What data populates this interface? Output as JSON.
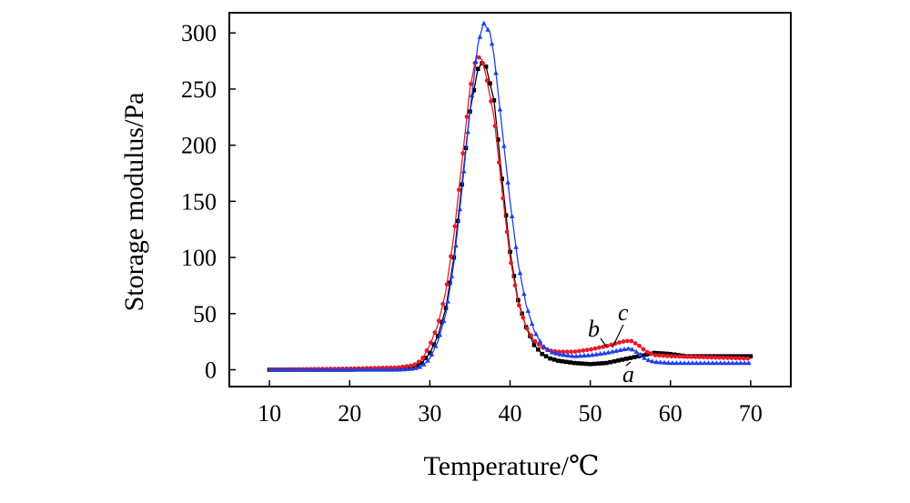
{
  "chart_data": {
    "type": "line",
    "title": "",
    "xlabel": "Temperature/℃",
    "ylabel": "Storage modulus/Pa",
    "xlim": [
      5,
      75
    ],
    "ylim": [
      -15,
      318
    ],
    "xticks": [
      10,
      20,
      30,
      40,
      50,
      60,
      70
    ],
    "yticks": [
      0,
      50,
      100,
      150,
      200,
      250,
      300
    ],
    "xtick_labels": [
      "10",
      "20",
      "30",
      "40",
      "50",
      "60",
      "70"
    ],
    "ytick_labels": [
      "0",
      "50",
      "100",
      "150",
      "200",
      "250",
      "300"
    ],
    "grid": false,
    "legend": "none",
    "annotations": [
      "a",
      "b",
      "c"
    ],
    "series": [
      {
        "name": "a",
        "color": "#000000",
        "marker": "square",
        "points": [
          [
            10,
            0
          ],
          [
            20,
            0
          ],
          [
            26,
            1
          ],
          [
            28,
            2
          ],
          [
            29,
            6
          ],
          [
            30,
            15
          ],
          [
            31,
            30
          ],
          [
            32,
            55
          ],
          [
            33,
            100
          ],
          [
            34,
            165
          ],
          [
            35,
            230
          ],
          [
            36,
            268
          ],
          [
            36.5,
            273
          ],
          [
            37,
            270
          ],
          [
            38,
            240
          ],
          [
            39,
            170
          ],
          [
            40,
            105
          ],
          [
            41,
            62
          ],
          [
            42,
            38
          ],
          [
            43,
            22
          ],
          [
            44,
            14
          ],
          [
            45,
            10
          ],
          [
            46,
            8
          ],
          [
            48,
            6
          ],
          [
            50,
            5
          ],
          [
            52,
            6
          ],
          [
            54,
            9
          ],
          [
            56,
            12
          ],
          [
            58,
            15
          ],
          [
            60,
            14
          ],
          [
            62,
            12
          ],
          [
            65,
            12
          ],
          [
            70,
            12
          ]
        ]
      },
      {
        "name": "b",
        "color": "#e8192c",
        "marker": "circle",
        "points": [
          [
            10,
            0
          ],
          [
            20,
            1
          ],
          [
            26,
            2
          ],
          [
            28,
            4
          ],
          [
            29,
            9
          ],
          [
            30,
            22
          ],
          [
            31,
            40
          ],
          [
            32,
            70
          ],
          [
            33,
            120
          ],
          [
            34,
            185
          ],
          [
            35,
            250
          ],
          [
            35.8,
            280
          ],
          [
            36.5,
            276
          ],
          [
            37,
            262
          ],
          [
            38,
            225
          ],
          [
            39,
            160
          ],
          [
            40,
            100
          ],
          [
            41,
            60
          ],
          [
            42,
            38
          ],
          [
            43,
            26
          ],
          [
            44,
            20
          ],
          [
            45,
            17
          ],
          [
            46,
            16
          ],
          [
            48,
            16
          ],
          [
            50,
            18
          ],
          [
            52,
            21
          ],
          [
            53,
            23
          ],
          [
            54,
            25
          ],
          [
            55,
            26
          ],
          [
            56,
            22
          ],
          [
            57,
            16
          ],
          [
            58,
            13
          ],
          [
            60,
            12
          ],
          [
            65,
            11
          ],
          [
            70,
            10
          ]
        ]
      },
      {
        "name": "c",
        "color": "#1f3fe8",
        "marker": "triangle",
        "points": [
          [
            10,
            0
          ],
          [
            20,
            0
          ],
          [
            26,
            0
          ],
          [
            28,
            1
          ],
          [
            29,
            3
          ],
          [
            30,
            10
          ],
          [
            31,
            25
          ],
          [
            32,
            50
          ],
          [
            33,
            95
          ],
          [
            34,
            160
          ],
          [
            35,
            230
          ],
          [
            36,
            290
          ],
          [
            36.7,
            309
          ],
          [
            37.5,
            300
          ],
          [
            38,
            280
          ],
          [
            39,
            215
          ],
          [
            40,
            150
          ],
          [
            41,
            95
          ],
          [
            42,
            58
          ],
          [
            43,
            35
          ],
          [
            44,
            22
          ],
          [
            45,
            16
          ],
          [
            46,
            14
          ],
          [
            48,
            12
          ],
          [
            50,
            13
          ],
          [
            52,
            15
          ],
          [
            54,
            18
          ],
          [
            55,
            19
          ],
          [
            56,
            15
          ],
          [
            57,
            9
          ],
          [
            58,
            7
          ],
          [
            60,
            6
          ],
          [
            65,
            6
          ],
          [
            70,
            6
          ]
        ]
      }
    ]
  }
}
